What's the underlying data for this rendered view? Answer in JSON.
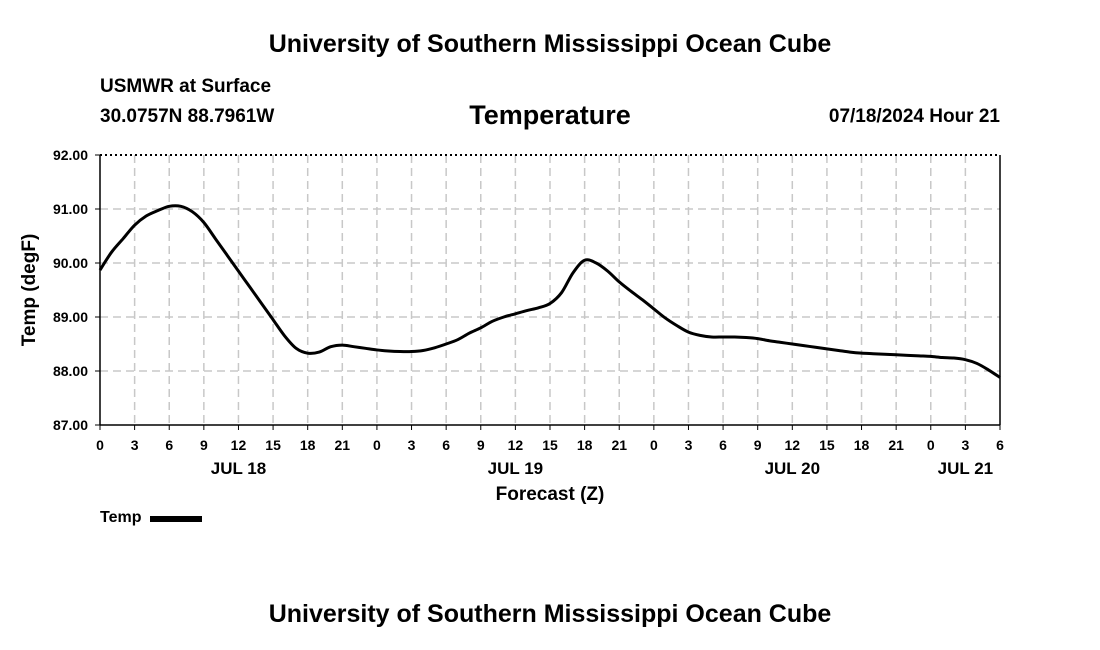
{
  "header": {
    "top_title": "University of Southern Mississippi Ocean Cube",
    "station": "USMWR at Surface",
    "coordinates": "30.0757N  88.7961W",
    "chart_title": "Temperature",
    "run_time": "07/18/2024 Hour 21"
  },
  "footer": {
    "bottom_title": "University of Southern Mississippi Ocean Cube"
  },
  "legend": {
    "label": "Temp"
  },
  "colors": {
    "line": "#000000",
    "grid": "#c8c8c8",
    "background": "#ffffff"
  },
  "chart_data": {
    "type": "line",
    "title": "Temperature",
    "xlabel": "Forecast (Z)",
    "ylabel": "Temp (degF)",
    "ylim": [
      87.0,
      92.0
    ],
    "yticks": [
      "87.00",
      "88.00",
      "89.00",
      "90.00",
      "91.00",
      "92.00"
    ],
    "xlim_hours": [
      0,
      78
    ],
    "xtick_step_hours": 3,
    "xtick_labels": [
      "0",
      "3",
      "6",
      "9",
      "12",
      "15",
      "18",
      "21",
      "0",
      "3",
      "6",
      "9",
      "12",
      "15",
      "18",
      "21",
      "0",
      "3",
      "6",
      "9",
      "12",
      "15",
      "18",
      "21",
      "0",
      "3",
      "6"
    ],
    "day_labels": [
      {
        "label": "JUL 18",
        "hour": 12
      },
      {
        "label": "JUL 19",
        "hour": 36
      },
      {
        "label": "JUL 20",
        "hour": 60
      },
      {
        "label": "JUL 21",
        "hour": 75
      }
    ],
    "grid": true,
    "series": [
      {
        "name": "Temp",
        "x": [
          0,
          1,
          2,
          3,
          4,
          5,
          6,
          7,
          8,
          9,
          10,
          11,
          12,
          13,
          14,
          15,
          16,
          17,
          18,
          19,
          20,
          21,
          22,
          23,
          24,
          25,
          26,
          27,
          28,
          29,
          30,
          31,
          32,
          33,
          34,
          35,
          36,
          37,
          38,
          39,
          40,
          41,
          42,
          43,
          44,
          45,
          46,
          47,
          48,
          49,
          50,
          51,
          52,
          53,
          54,
          55,
          56,
          57,
          58,
          59,
          60,
          61,
          62,
          63,
          64,
          65,
          66,
          67,
          68,
          69,
          70,
          71,
          72,
          73,
          74,
          75,
          76,
          77,
          78
        ],
        "values": [
          89.87,
          90.2,
          90.45,
          90.7,
          90.87,
          90.97,
          91.05,
          91.05,
          90.95,
          90.75,
          90.45,
          90.15,
          89.85,
          89.55,
          89.25,
          88.95,
          88.65,
          88.42,
          88.33,
          88.35,
          88.45,
          88.48,
          88.45,
          88.42,
          88.39,
          88.37,
          88.36,
          88.36,
          88.38,
          88.43,
          88.5,
          88.58,
          88.7,
          88.8,
          88.92,
          89.0,
          89.06,
          89.12,
          89.17,
          89.25,
          89.45,
          89.82,
          90.05,
          90.0,
          89.85,
          89.65,
          89.48,
          89.32,
          89.15,
          88.98,
          88.84,
          88.72,
          88.66,
          88.63,
          88.63,
          88.63,
          88.62,
          88.6,
          88.56,
          88.53,
          88.5,
          88.47,
          88.44,
          88.41,
          88.38,
          88.35,
          88.33,
          88.32,
          88.31,
          88.3,
          88.29,
          88.28,
          88.27,
          88.25,
          88.24,
          88.21,
          88.14,
          88.02,
          87.88
        ]
      }
    ]
  }
}
